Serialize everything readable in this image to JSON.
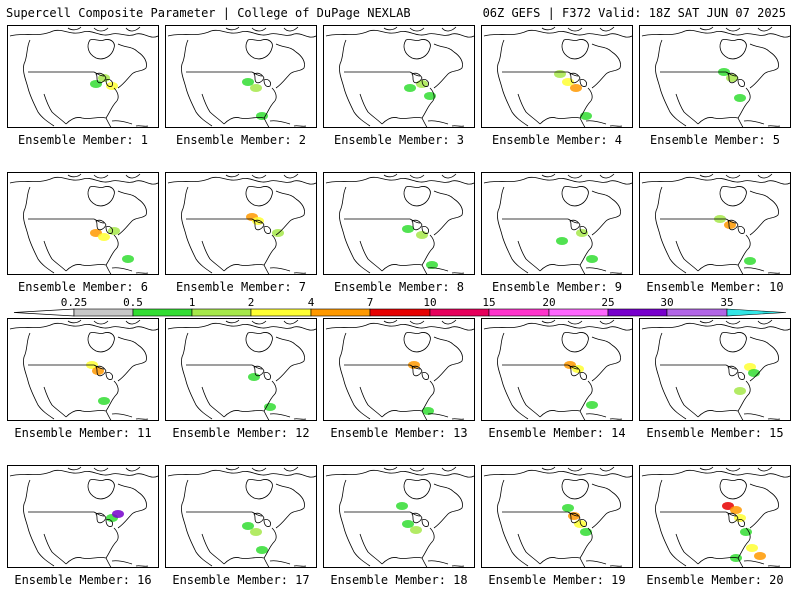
{
  "header": {
    "left_title": "Supercell Composite Parameter | College of DuPage NEXLAB",
    "right_title": "06Z GEFS | F372 Valid: 18Z SAT JUN 07 2025"
  },
  "panels": [
    {
      "label": "Ensemble Member: 1"
    },
    {
      "label": "Ensemble Member: 2"
    },
    {
      "label": "Ensemble Member: 3"
    },
    {
      "label": "Ensemble Member: 4"
    },
    {
      "label": "Ensemble Member: 5"
    },
    {
      "label": "Ensemble Member: 6"
    },
    {
      "label": "Ensemble Member: 7"
    },
    {
      "label": "Ensemble Member: 8"
    },
    {
      "label": "Ensemble Member: 9"
    },
    {
      "label": "Ensemble Member: 10"
    },
    {
      "label": "Ensemble Member: 11"
    },
    {
      "label": "Ensemble Member: 12"
    },
    {
      "label": "Ensemble Member: 13"
    },
    {
      "label": "Ensemble Member: 14"
    },
    {
      "label": "Ensemble Member: 15"
    },
    {
      "label": "Ensemble Member: 16"
    },
    {
      "label": "Ensemble Member: 17"
    },
    {
      "label": "Ensemble Member: 18"
    },
    {
      "label": "Ensemble Member: 19"
    },
    {
      "label": "Ensemble Member: 20"
    }
  ],
  "colorbar": {
    "ticks": [
      "0.25",
      "0.5",
      "1",
      "2",
      "4",
      "7",
      "10",
      "15",
      "20",
      "25",
      "30",
      "35"
    ],
    "colors": [
      "#c8c8c8",
      "#33dd33",
      "#a6e84a",
      "#ffff33",
      "#ff9900",
      "#e60000",
      "#e6005c",
      "#ff33cc",
      "#ff66ff",
      "#7700cc",
      "#b266e6",
      "#33e6e6"
    ]
  }
}
